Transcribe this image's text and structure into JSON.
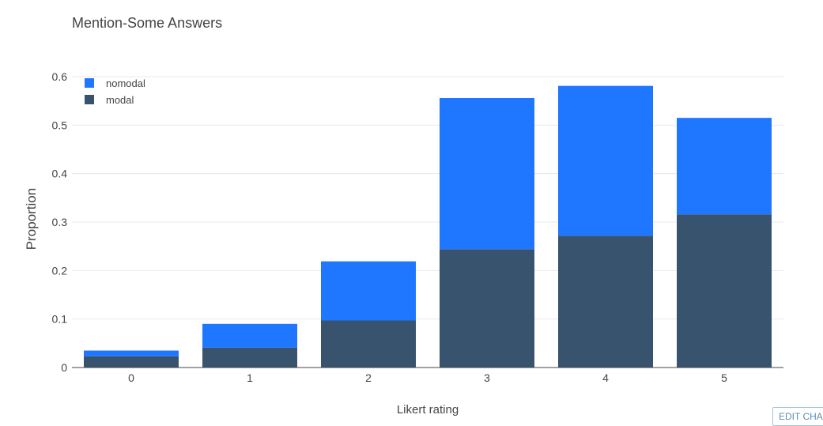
{
  "chart_data": {
    "type": "bar",
    "barmode": "stack",
    "title": "Mention-Some Answers",
    "xlabel": "Likert rating",
    "ylabel": "Proportion",
    "categories": [
      "0",
      "1",
      "2",
      "3",
      "4",
      "5"
    ],
    "ylim": [
      0,
      0.6
    ],
    "yticks": [
      "0",
      "0.1",
      "0.2",
      "0.3",
      "0.4",
      "0.5",
      "0.6"
    ],
    "grid": true,
    "legend_position": "top-left",
    "series": [
      {
        "name": "modal",
        "color": "#38536e",
        "values": [
          0.023,
          0.041,
          0.097,
          0.244,
          0.272,
          0.316
        ]
      },
      {
        "name": "nomodal",
        "color": "#1f77ff",
        "values": [
          0.012,
          0.049,
          0.122,
          0.312,
          0.309,
          0.199
        ]
      }
    ],
    "legend_order": [
      "nomodal",
      "modal"
    ]
  },
  "ui": {
    "edit_chart_label": "EDIT CHA"
  }
}
